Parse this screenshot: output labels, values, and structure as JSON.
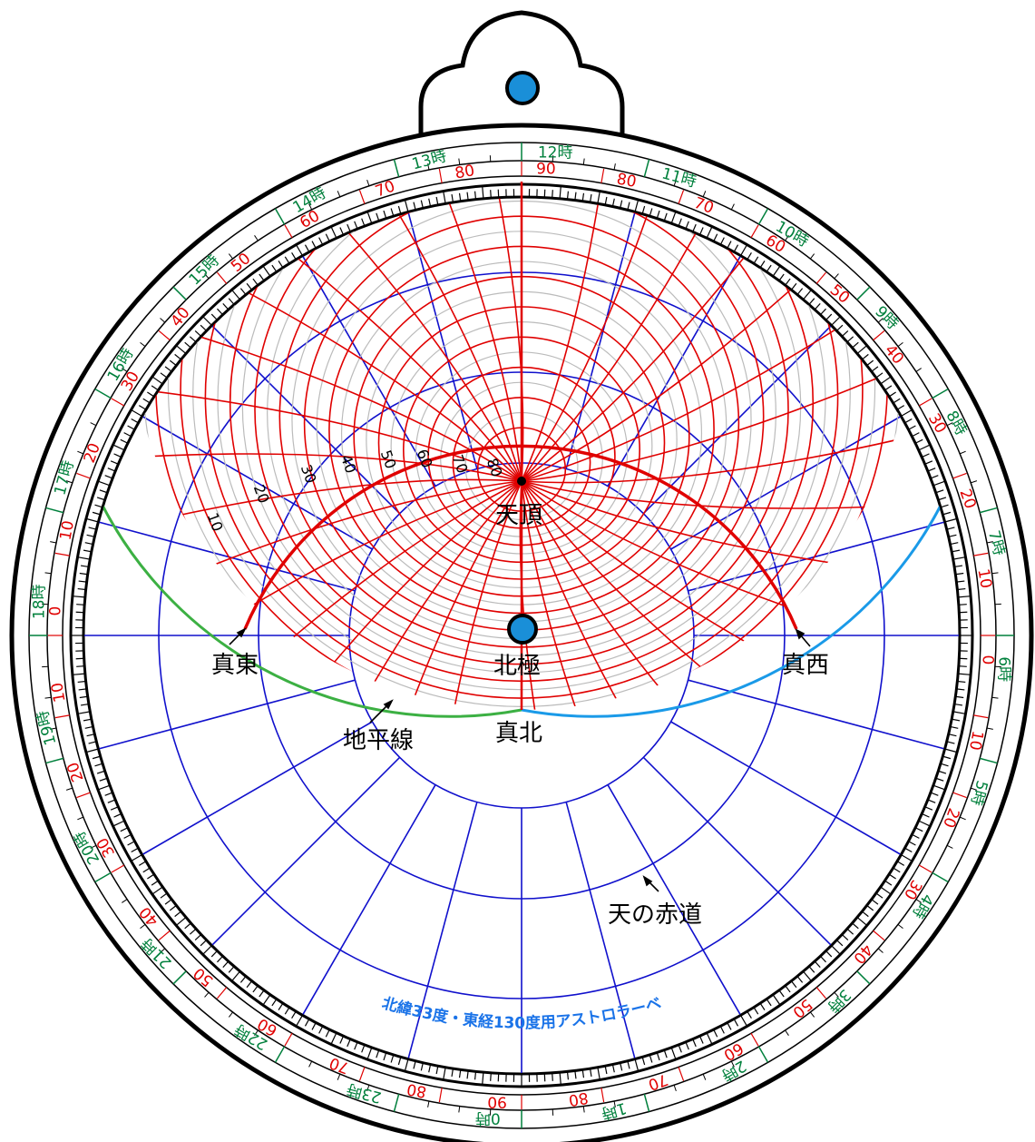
{
  "labels": {
    "zenith": "天頂",
    "north_pole": "北極",
    "east": "真東",
    "west": "真西",
    "north": "真北",
    "horizon": "地平線",
    "celestial_equator": "天の赤道",
    "title": "北緯33度・東経130度用アストロラーベ"
  },
  "altitude_labels": [
    "10",
    "20",
    "30",
    "40",
    "50",
    "60",
    "70",
    "80"
  ],
  "hour_labels": [
    "0時",
    "1時",
    "2時",
    "3時",
    "4時",
    "5時",
    "6時",
    "7時",
    "8時",
    "9時",
    "10時",
    "11時",
    "12時",
    "13時",
    "14時",
    "15時",
    "16時",
    "17時",
    "18時",
    "19時",
    "20時",
    "21時",
    "22時",
    "23時"
  ],
  "degree_ring_labels": [
    "90",
    "80",
    "70",
    "60",
    "50",
    "40",
    "30",
    "20",
    "10",
    "0",
    "10",
    "20",
    "30",
    "40",
    "50",
    "60",
    "70",
    "80",
    "90",
    "80",
    "70",
    "60",
    "50",
    "40",
    "30",
    "20",
    "10",
    "0",
    "10",
    "20",
    "30",
    "40",
    "50",
    "60",
    "70",
    "80"
  ],
  "colors": {
    "altitude_grid": "#e00000",
    "minor_grid": "#bbbbbb",
    "equator_grid": "#1010cc",
    "horizon_east": "#3cb043",
    "horizon_west": "#1a9ae8",
    "pin": "#1a8fd8",
    "hour_text": "#00803c",
    "degree_text": "#e00000",
    "title_text": "#1a73e8"
  },
  "icons": {
    "pivot": "pivot-pin-icon",
    "hanger": "hanger-pin-icon"
  }
}
